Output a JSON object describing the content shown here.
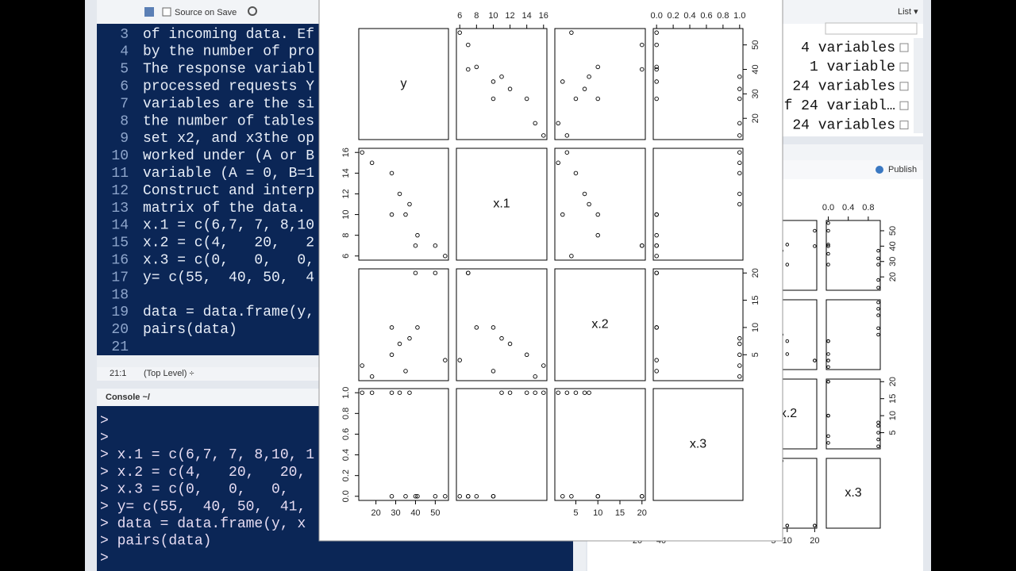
{
  "editor": {
    "toolbar": {
      "source_on_save": "Source on Save"
    },
    "lines": [
      {
        "n": 3,
        "text": "of incoming data. Ef"
      },
      {
        "n": 4,
        "text": "by the number of pro"
      },
      {
        "n": 5,
        "text": "The response variabl"
      },
      {
        "n": 6,
        "text": "processed requests Y"
      },
      {
        "n": 7,
        "text": "variables are the si"
      },
      {
        "n": 8,
        "text": "the number of tables"
      },
      {
        "n": 9,
        "text": "set x2, and x3the op"
      },
      {
        "n": 10,
        "text": "worked under (A or B"
      },
      {
        "n": 11,
        "text": "variable (A = 0, B=1"
      },
      {
        "n": 12,
        "text": "Construct and interp"
      },
      {
        "n": 13,
        "text": "matrix of the data."
      },
      {
        "n": 14,
        "text": "x.1 = c(6,7, 7, 8,10"
      },
      {
        "n": 15,
        "text": "x.2 = c(4,   20,   2"
      },
      {
        "n": 16,
        "text": "x.3 = c(0,   0,   0,"
      },
      {
        "n": 17,
        "text": "y= c(55,  40, 50,  4"
      },
      {
        "n": 18
      },
      {
        "n": 19,
        "text": "data = data.frame(y,"
      },
      {
        "n": 20,
        "text": "pairs(data)"
      },
      {
        "n": 21
      }
    ],
    "status": {
      "position": "21:1",
      "scope": "(Top Level) ÷"
    }
  },
  "console": {
    "title": "Console ~/",
    "lines": [
      ">",
      ">",
      "> x.1 = c(6,7, 7, 8,10, 1",
      "> x.2 = c(4,   20,   20,",
      "> x.3 = c(0,   0,   0,",
      "> y= c(55,  40, 50,  41,",
      "> data = data.frame(y, x",
      "> pairs(data)",
      ">"
    ]
  },
  "environment": {
    "view": "List ▾",
    "items": [
      "4 variables",
      "1 variable",
      "24 variables",
      "f 24 variabl…",
      "24 variables"
    ]
  },
  "plots_pane": {
    "publish": "Publish"
  },
  "pairs": {
    "variables": [
      {
        "name": "y",
        "values": [
          55,
          40,
          50,
          41,
          35,
          28,
          37,
          32,
          28,
          18,
          13
        ],
        "ticks": [
          20,
          30,
          40,
          50
        ]
      },
      {
        "name": "x.1",
        "values": [
          6,
          7,
          7,
          8,
          10,
          10,
          11,
          12,
          14,
          15,
          16
        ],
        "ticks": [
          6,
          8,
          10,
          12,
          14,
          16
        ]
      },
      {
        "name": "x.2",
        "values": [
          4,
          20,
          20,
          10,
          2,
          10,
          8,
          7,
          5,
          1,
          3
        ],
        "ticks": [
          5,
          10,
          15,
          20
        ]
      },
      {
        "name": "x.3",
        "values": [
          0,
          0,
          0,
          0,
          0,
          0,
          1,
          1,
          1,
          1,
          1
        ],
        "ticks": [
          {
            "value": 0,
            "label": "0.0"
          },
          {
            "value": 0.2,
            "label": "0.2"
          },
          {
            "value": 0.4,
            "label": "0.4"
          },
          {
            "value": 0.6,
            "label": "0.6"
          },
          {
            "value": 0.8,
            "label": "0.8"
          },
          {
            "value": 1,
            "label": "1.0"
          }
        ]
      }
    ],
    "small_plot": {
      "top_x3_ticks": [
        {
          "value": 0,
          "label": "0.0"
        },
        {
          "value": 0.4,
          "label": "0.4"
        },
        {
          "value": 0.8,
          "label": "0.8"
        }
      ],
      "right_y_ticks": [
        20,
        30,
        40,
        50
      ],
      "right_x2_ticks": [
        5,
        10,
        15,
        20
      ],
      "bottom_y_ticks": [
        20,
        40
      ],
      "bottom_x2_ticks": [
        5,
        10,
        20
      ]
    }
  }
}
